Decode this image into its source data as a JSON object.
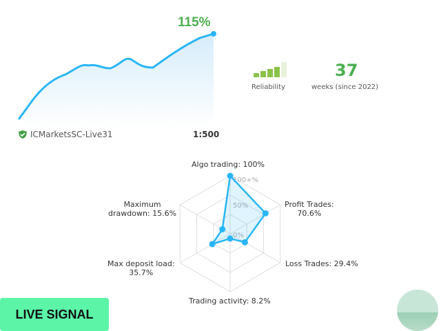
{
  "equity": {
    "gain": "115%",
    "server": "ICMarketsSC-Live31",
    "leverage": "1:500",
    "line_color": "#29b6f6"
  },
  "stats": {
    "reliability_label": "Reliability",
    "reliability_level": 4,
    "reliability_max": 5,
    "weeks": "37",
    "weeks_label": "weeks (since 2022)"
  },
  "chart_data": {
    "type": "radar",
    "axes": [
      {
        "label": "Algo trading: 100%",
        "value": 100
      },
      {
        "label": "Profit Trades: 70.6%",
        "value": 70.6
      },
      {
        "label": "Loss Trades: 29.4%",
        "value": 29.4
      },
      {
        "label": "Trading activity: 8.2%",
        "value": 8.2
      },
      {
        "label": "Max deposit load: 35.7%",
        "value": 35.7
      },
      {
        "label": "Maximum drawdown: 15.6%",
        "value": 15.6
      }
    ],
    "ring_labels": [
      "0%",
      "50%",
      "100+%"
    ],
    "range": [
      0,
      100
    ]
  },
  "radar_labels": {
    "algo": "Algo trading: 100%",
    "profit_1": "Profit Trades:",
    "profit_2": "70.6%",
    "loss": "Loss Trades: 29.4%",
    "activity": "Trading activity: 8.2%",
    "load_1": "Max deposit load:",
    "load_2": "35.7%",
    "dd_1": "Maximum",
    "dd_2": "drawdown: 15.6%"
  },
  "badge": {
    "label": "LIVE SIGNAL"
  }
}
